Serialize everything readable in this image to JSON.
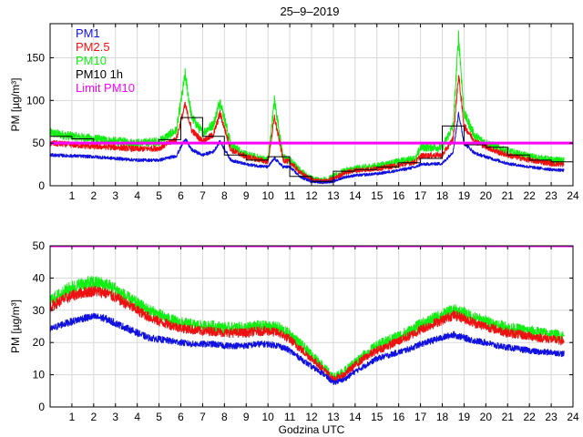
{
  "figure_title": "25–9–2019",
  "colors": {
    "pm1": "#1010e0",
    "pm25": "#ee1111",
    "pm10": "#11ee11",
    "pm10_1h": "#000000",
    "limit": "#ff00ff",
    "grid": "#d9d9d9",
    "axes": "#000000"
  },
  "chart_data": [
    {
      "type": "line",
      "title": "25–9–2019",
      "xlabel": "",
      "ylabel": "PM [µg/m³]",
      "xlim": [
        0,
        24
      ],
      "ylim": [
        0,
        190
      ],
      "xticks": [
        1,
        2,
        3,
        4,
        5,
        6,
        7,
        8,
        9,
        10,
        11,
        12,
        13,
        14,
        15,
        16,
        17,
        18,
        19,
        20,
        21,
        22,
        23,
        24
      ],
      "yticks": [
        0,
        50,
        100,
        150
      ],
      "grid": true,
      "legend_position": "top-left",
      "limit": {
        "name": "Limit PM10",
        "value": 50
      },
      "series": [
        {
          "name": "PM1",
          "key": "pm1",
          "x": [
            0,
            1,
            2,
            3,
            4,
            5,
            5.8,
            6.2,
            6.5,
            7,
            7.5,
            7.8,
            8.3,
            9,
            10,
            10.3,
            10.7,
            11,
            11.5,
            12,
            12.5,
            13,
            13.5,
            14,
            15,
            16,
            16.8,
            17,
            18,
            18.5,
            18.75,
            19,
            19.5,
            20,
            20.5,
            21,
            22,
            23,
            23.5
          ],
          "values": [
            36,
            35,
            34,
            32,
            30,
            30,
            35,
            55,
            42,
            36,
            40,
            52,
            30,
            25,
            22,
            32,
            22,
            22,
            10,
            5,
            4,
            5,
            10,
            12,
            14,
            18,
            22,
            25,
            26,
            40,
            85,
            50,
            38,
            34,
            30,
            26,
            22,
            19,
            18
          ]
        },
        {
          "name": "PM2.5",
          "key": "pm25",
          "x": [
            0,
            1,
            2,
            3,
            4,
            5,
            5.8,
            6.2,
            6.5,
            7,
            7.5,
            7.8,
            8.3,
            9,
            10,
            10.3,
            10.7,
            11,
            11.5,
            12,
            12.5,
            13,
            13.5,
            14,
            15,
            16,
            16.8,
            17,
            18,
            18.5,
            18.75,
            19,
            19.5,
            20,
            20.5,
            21,
            22,
            23,
            23.5
          ],
          "values": [
            50,
            48,
            46,
            45,
            43,
            44,
            55,
            95,
            65,
            52,
            60,
            85,
            42,
            34,
            28,
            80,
            30,
            28,
            15,
            7,
            5,
            8,
            15,
            18,
            20,
            24,
            28,
            35,
            36,
            55,
            130,
            70,
            52,
            46,
            40,
            36,
            30,
            26,
            25
          ]
        },
        {
          "name": "PM10",
          "key": "pm10",
          "x": [
            0,
            1,
            2,
            3,
            4,
            5,
            5.8,
            6.2,
            6.5,
            7,
            7.5,
            7.8,
            8.3,
            9,
            10,
            10.3,
            10.7,
            11,
            11.5,
            12,
            12.5,
            13,
            13.5,
            14,
            15,
            16,
            16.8,
            17,
            18,
            18.5,
            18.75,
            19,
            19.5,
            20,
            20.5,
            21,
            22,
            23,
            23.5
          ],
          "values": [
            62,
            58,
            55,
            52,
            50,
            52,
            65,
            130,
            80,
            62,
            72,
            100,
            48,
            36,
            30,
            100,
            33,
            30,
            17,
            8,
            6,
            10,
            17,
            20,
            23,
            28,
            32,
            45,
            45,
            70,
            175,
            85,
            58,
            50,
            45,
            40,
            34,
            30,
            29
          ]
        },
        {
          "name": "PM10 1h",
          "key": "pm10_1h",
          "step": true,
          "x": [
            0,
            1,
            2,
            3,
            4,
            5,
            6,
            7,
            8,
            9,
            10,
            11,
            12,
            13,
            14,
            15,
            16,
            17,
            18,
            19,
            20,
            21,
            22,
            23
          ],
          "values": [
            58,
            55,
            51,
            49,
            49,
            54,
            80,
            58,
            36,
            30,
            34,
            11,
            5,
            17,
            19,
            22,
            27,
            32,
            70,
            48,
            45,
            36,
            30,
            28
          ]
        }
      ]
    },
    {
      "type": "line",
      "title": "",
      "xlabel": "Godzina UTC",
      "ylabel": "PM [µg/m³]",
      "xlim": [
        0,
        24
      ],
      "ylim": [
        0,
        50
      ],
      "xticks": [
        1,
        2,
        3,
        4,
        5,
        6,
        7,
        8,
        9,
        10,
        11,
        12,
        13,
        14,
        15,
        16,
        17,
        18,
        19,
        20,
        21,
        22,
        23,
        24
      ],
      "yticks": [
        0,
        10,
        20,
        30,
        40,
        50
      ],
      "grid": true,
      "limit": {
        "name": "Limit PM10",
        "value": 50
      },
      "series": [
        {
          "name": "PM1",
          "key": "pm1",
          "x": [
            0,
            0.5,
            1,
            1.5,
            2,
            2.5,
            3,
            3.5,
            4,
            4.5,
            5,
            5.5,
            6,
            6.5,
            7,
            7.5,
            8,
            8.5,
            9,
            9.5,
            10,
            10.5,
            11,
            11.5,
            12,
            12.5,
            13,
            13.5,
            14,
            14.5,
            15,
            15.5,
            16,
            16.5,
            17,
            17.5,
            18,
            18.5,
            19,
            19.5,
            20,
            20.5,
            21,
            21.5,
            22,
            22.5,
            23,
            23.5
          ],
          "values": [
            24,
            25.5,
            26.5,
            27.5,
            28,
            27.5,
            26,
            24.5,
            23,
            21.5,
            21,
            20.5,
            20,
            19.5,
            19.5,
            19.5,
            19,
            19,
            19,
            19.5,
            19.5,
            19,
            17.5,
            15,
            12.5,
            10.5,
            7.5,
            8.5,
            11,
            13,
            15,
            16,
            17,
            18,
            19.5,
            20.5,
            21.5,
            22.5,
            21.5,
            20.5,
            20,
            19,
            18.5,
            18,
            17.5,
            17,
            17,
            16.5
          ]
        },
        {
          "name": "PM2.5",
          "key": "pm25",
          "x": [
            0,
            0.5,
            1,
            1.5,
            2,
            2.5,
            3,
            3.5,
            4,
            4.5,
            5,
            5.5,
            6,
            6.5,
            7,
            7.5,
            8,
            8.5,
            9,
            9.5,
            10,
            10.5,
            11,
            11.5,
            12,
            12.5,
            13,
            13.5,
            14,
            14.5,
            15,
            15.5,
            16,
            16.5,
            17,
            17.5,
            18,
            18.5,
            19,
            19.5,
            20,
            20.5,
            21,
            21.5,
            22,
            22.5,
            23,
            23.5
          ],
          "values": [
            31,
            33,
            34.5,
            35.5,
            36,
            35.5,
            34,
            32,
            30,
            28,
            26.5,
            25.5,
            24.5,
            24,
            23.5,
            23.5,
            23,
            23,
            23,
            23.5,
            23.5,
            23,
            21,
            18,
            15,
            12,
            8.5,
            10,
            13,
            15.5,
            17.5,
            19,
            20.5,
            22,
            24,
            25.5,
            27,
            28.5,
            27.5,
            26,
            25,
            24,
            23,
            22.5,
            22,
            21.5,
            21,
            20.5
          ]
        },
        {
          "name": "PM10",
          "key": "pm10",
          "x": [
            0,
            0.5,
            1,
            1.5,
            2,
            2.5,
            3,
            3.5,
            4,
            4.5,
            5,
            5.5,
            6,
            6.5,
            7,
            7.5,
            8,
            8.5,
            9,
            9.5,
            10,
            10.5,
            11,
            11.5,
            12,
            12.5,
            13,
            13.5,
            14,
            14.5,
            15,
            15.5,
            16,
            16.5,
            17,
            17.5,
            18,
            18.5,
            19,
            19.5,
            20,
            20.5,
            21,
            21.5,
            22,
            22.5,
            23,
            23.5
          ],
          "values": [
            33,
            35,
            37,
            38,
            38.5,
            38,
            36.5,
            34,
            32,
            30,
            28.5,
            27,
            26,
            25.5,
            25,
            25,
            24.5,
            24.5,
            24.5,
            25,
            25,
            24.5,
            22.5,
            19.5,
            16,
            13,
            9,
            11,
            14,
            16.5,
            19,
            20.5,
            22,
            23.5,
            25.5,
            27,
            28.5,
            30,
            29,
            27.5,
            26.5,
            25.5,
            24.5,
            24,
            23.5,
            23,
            22.5,
            22
          ]
        }
      ]
    }
  ]
}
